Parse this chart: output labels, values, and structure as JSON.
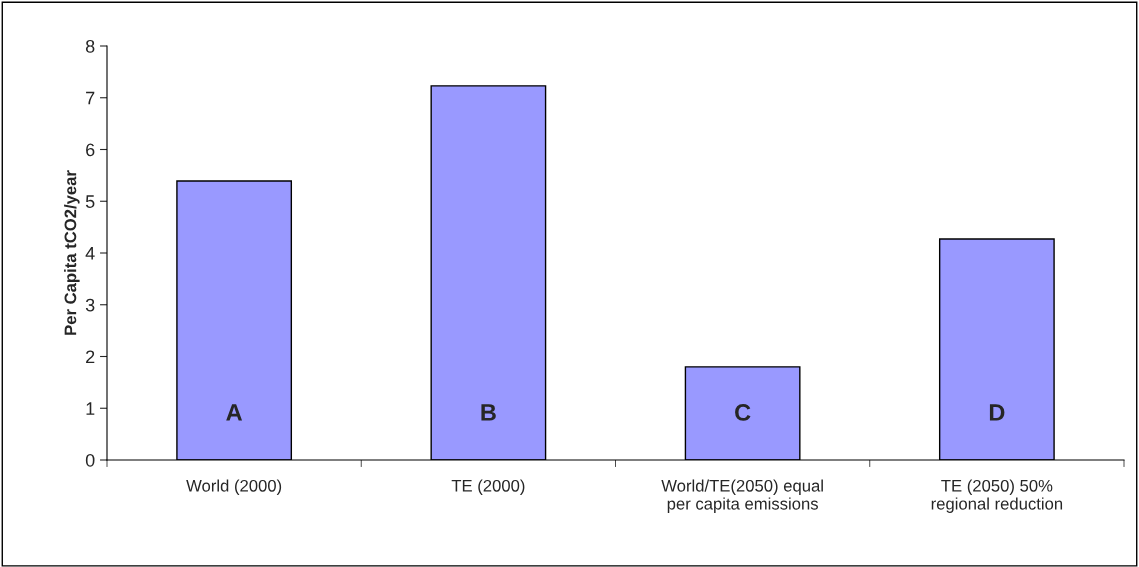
{
  "chart_data": {
    "type": "bar",
    "ylabel": "Per Capita tCO2/year",
    "categories": [
      "World (2000)",
      "TE (2000)",
      "World/TE(2050) equal\nper capita emissions",
      "TE (2050) 50%\nregional reduction"
    ],
    "values": [
      5.39,
      7.23,
      1.8,
      4.27
    ],
    "color": "#9999ff",
    "ylim": [
      0,
      8
    ],
    "yticks": [
      0,
      1,
      2,
      3,
      4,
      5,
      6,
      7,
      8
    ],
    "grid": false,
    "legend": false,
    "annotations": [
      "A",
      "B",
      "C",
      "D"
    ]
  }
}
